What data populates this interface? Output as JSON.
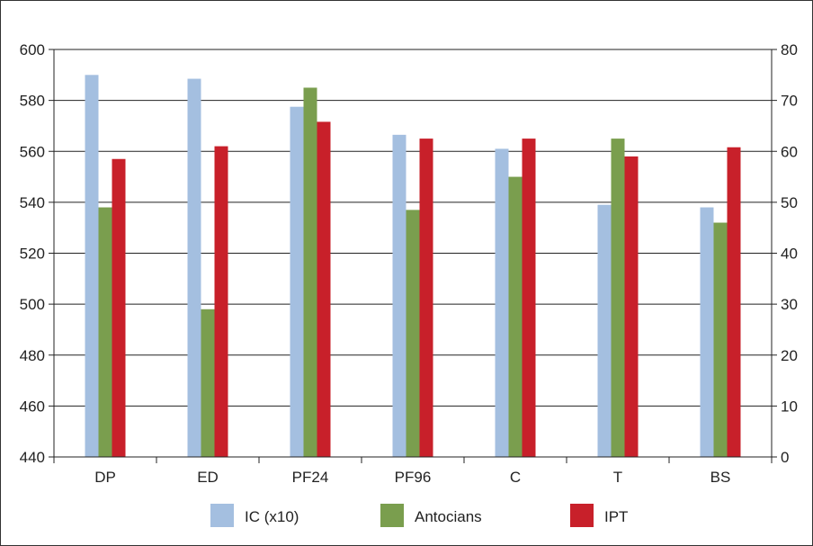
{
  "chart_data": {
    "type": "bar",
    "categories": [
      "DP",
      "ED",
      "PF24",
      "PF96",
      "C",
      "T",
      "BS"
    ],
    "series": [
      {
        "name": "IC (x10)",
        "axis": "left",
        "color": "#a4bfe0",
        "values": [
          590,
          588.5,
          577.5,
          566.5,
          561,
          539,
          538
        ]
      },
      {
        "name": "Antocians",
        "axis": "right",
        "color": "#7a9e4e",
        "values": [
          49,
          29,
          72.5,
          48.5,
          55,
          62.5,
          46
        ]
      },
      {
        "name": "IPT",
        "axis": "right",
        "color": "#c8202a",
        "values": [
          58.5,
          61,
          65.8,
          62.5,
          62.5,
          59,
          60.8
        ]
      }
    ],
    "y_left": {
      "min": 440,
      "max": 600,
      "ticks": [
        "440",
        "460",
        "480",
        "500",
        "520",
        "540",
        "560",
        "580",
        "600"
      ]
    },
    "y_right": {
      "min": 0,
      "max": 80,
      "ticks": [
        "0",
        "10",
        "20",
        "30",
        "40",
        "50",
        "60",
        "70",
        "80"
      ]
    },
    "grid": true,
    "legend_position": "bottom"
  }
}
